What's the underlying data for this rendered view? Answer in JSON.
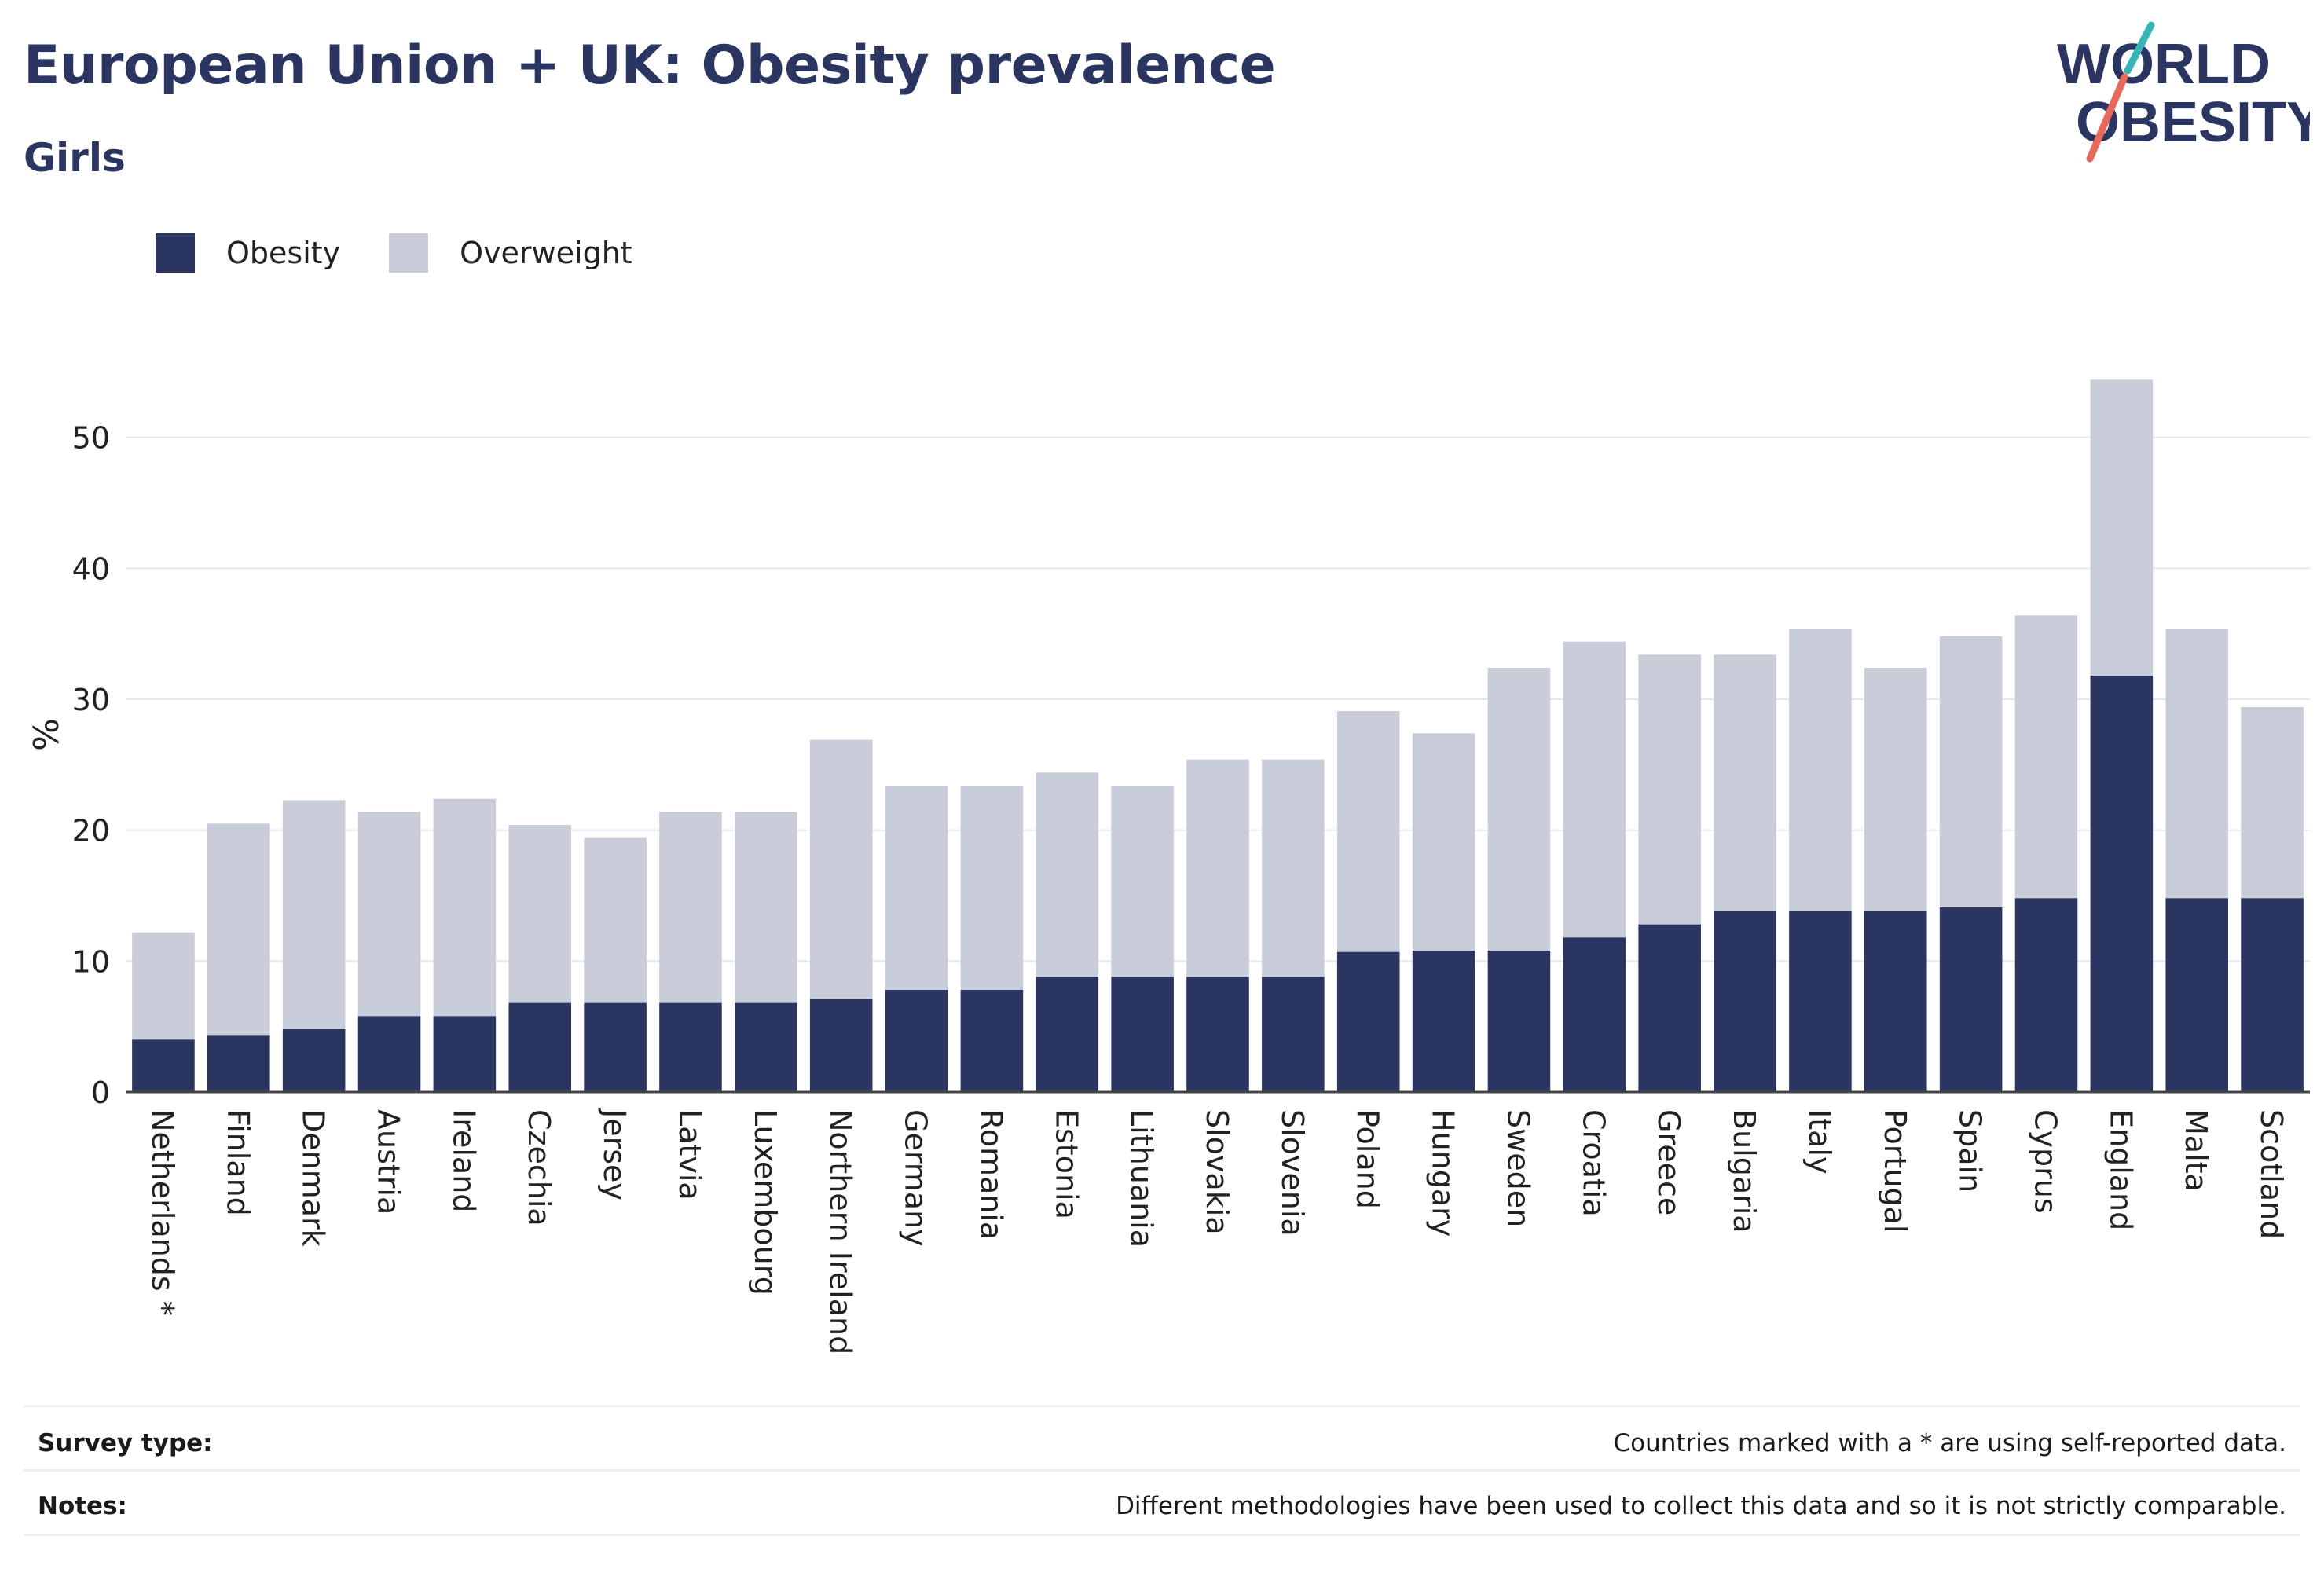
{
  "header": {
    "title": "European Union + UK: Obesity prevalence",
    "subtitle": "Girls"
  },
  "logo": {
    "line1": "WORLD",
    "line2": "OBESITY",
    "colors": {
      "text": "#2b3561",
      "slash_top": "#35b6b4",
      "slash_bottom": "#e8685a"
    }
  },
  "legend": {
    "items": [
      {
        "label": "Obesity",
        "color": "#2b3561"
      },
      {
        "label": "Overweight",
        "color": "#c9ccd9"
      }
    ]
  },
  "chart_data": {
    "type": "bar",
    "stacked": true,
    "ylabel": "%",
    "ylim": [
      0,
      57
    ],
    "yticks": [
      0,
      10,
      20,
      30,
      40,
      50
    ],
    "grid": true,
    "legend_position": "top-left",
    "categories": [
      "Netherlands *",
      "Finland",
      "Denmark",
      "Austria",
      "Ireland",
      "Czechia",
      "Jersey",
      "Latvia",
      "Luxembourg",
      "Northern Ireland",
      "Germany",
      "Romania",
      "Estonia",
      "Lithuania",
      "Slovakia",
      "Slovenia",
      "Poland",
      "Hungary",
      "Sweden",
      "Croatia",
      "Greece",
      "Bulgaria",
      "Italy",
      "Portugal",
      "Spain",
      "Cyprus",
      "England",
      "Malta",
      "Scotland"
    ],
    "series": [
      {
        "name": "Obesity",
        "color": "#2b3561",
        "values": [
          4.0,
          4.3,
          4.8,
          5.8,
          5.8,
          6.8,
          6.8,
          6.8,
          6.8,
          7.1,
          7.8,
          7.8,
          8.8,
          8.8,
          8.8,
          8.8,
          10.7,
          10.8,
          10.8,
          11.8,
          12.8,
          13.8,
          13.8,
          13.8,
          14.1,
          14.8,
          31.8,
          14.8,
          14.8
        ]
      },
      {
        "name": "Overweight",
        "color": "#c9ccd9",
        "values": [
          8.2,
          16.2,
          17.5,
          15.6,
          16.6,
          13.6,
          12.6,
          14.6,
          14.6,
          19.8,
          15.6,
          15.6,
          15.6,
          14.6,
          16.6,
          16.6,
          18.4,
          16.6,
          21.6,
          22.6,
          20.6,
          19.6,
          21.6,
          18.6,
          20.7,
          21.6,
          22.6,
          20.6,
          14.6
        ]
      }
    ]
  },
  "footer": {
    "survey_label": "Survey type:",
    "survey_value": "Countries marked with a * are using self-reported data.",
    "notes_label": "Notes:",
    "notes_value": "Different methodologies have been used to collect this data and so it is not strictly comparable."
  }
}
